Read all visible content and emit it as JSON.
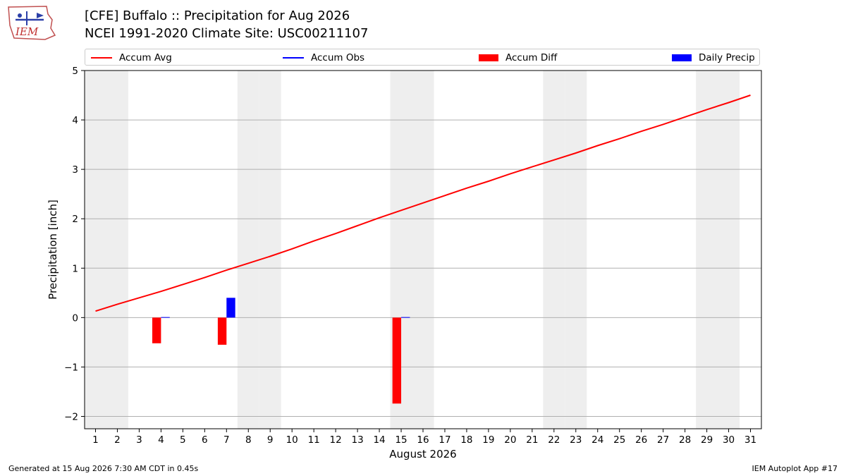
{
  "header": {
    "logo_text": "IEM",
    "title_line1": "[CFE] Buffalo :: Precipitation for Aug 2026",
    "title_line2": "NCEI 1991-2020 Climate Site: USC00211107"
  },
  "footer": {
    "left": "Generated at 15 Aug 2026 7:30 AM CDT in 0.45s",
    "right": "IEM Autoplot App #17"
  },
  "colors": {
    "accum_avg": "#ff0000",
    "accum_obs": "#0000ff",
    "accum_diff": "#ff0000",
    "daily_precip": "#0000ff",
    "weekend_shade": "#eeeeee",
    "grid": "#b0b0b0"
  },
  "chart_data": {
    "type": "line",
    "xlabel": "August 2026",
    "ylabel": "Precipitation [inch]",
    "xlim": [
      0.5,
      31.5
    ],
    "ylim": [
      -2.25,
      5
    ],
    "yticks": [
      -2,
      -1,
      0,
      1,
      2,
      3,
      4,
      5
    ],
    "ytick_labels": [
      "−2",
      "−1",
      "0",
      "1",
      "2",
      "3",
      "4",
      "5"
    ],
    "x": [
      1,
      2,
      3,
      4,
      5,
      6,
      7,
      8,
      9,
      10,
      11,
      12,
      13,
      14,
      15,
      16,
      17,
      18,
      19,
      20,
      21,
      22,
      23,
      24,
      25,
      26,
      27,
      28,
      29,
      30,
      31
    ],
    "grid": "horizontal",
    "legend_position": "top",
    "weekend_days": [
      1,
      2,
      8,
      9,
      15,
      16,
      22,
      23,
      29,
      30
    ],
    "legend": [
      "Accum Avg",
      "Accum Obs",
      "Accum Diff",
      "Daily Precip"
    ],
    "series": [
      {
        "name": "Accum Avg",
        "type": "line",
        "values": [
          0.13,
          0.27,
          0.4,
          0.53,
          0.67,
          0.81,
          0.96,
          1.1,
          1.24,
          1.39,
          1.55,
          1.7,
          1.86,
          2.02,
          2.17,
          2.32,
          2.47,
          2.62,
          2.76,
          2.91,
          3.05,
          3.19,
          3.33,
          3.48,
          3.62,
          3.77,
          3.91,
          4.06,
          4.21,
          4.35,
          4.5
        ]
      },
      {
        "name": "Accum Diff",
        "type": "bar",
        "x": [
          4,
          7,
          15
        ],
        "values": [
          -0.52,
          -0.55,
          -1.74
        ]
      },
      {
        "name": "Daily Precip",
        "type": "bar",
        "x": [
          4,
          7,
          15
        ],
        "values": [
          0.01,
          0.4,
          0.01
        ]
      }
    ]
  }
}
